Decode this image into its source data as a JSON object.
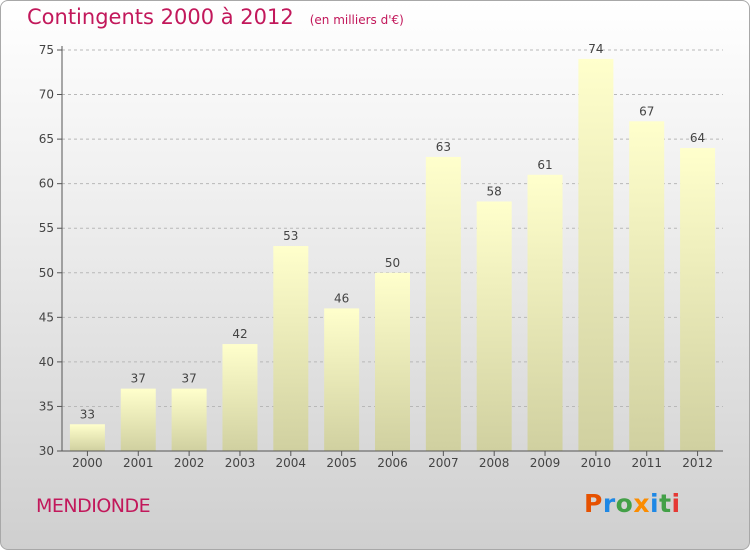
{
  "title": "Contingents 2000 à 2012",
  "subtitle": "(en milliers d'€)",
  "commune": "MENDIONDE",
  "brand": {
    "letters": [
      "P",
      "r",
      "o",
      "x",
      "i",
      "t",
      "i"
    ],
    "colors": [
      "#e65100",
      "#1e88e5",
      "#43a047",
      "#fb8c00",
      "#1e88e5",
      "#43a047",
      "#e53935"
    ]
  },
  "colors": {
    "accent": "#c2185b",
    "bar_top": "#ffffcc",
    "bar_bottom": "#d0d0a0",
    "grid": "#b8b8b8"
  },
  "chart_data": {
    "type": "bar",
    "title": "Contingents 2000 à 2012",
    "subtitle": "(en milliers d'€)",
    "categories": [
      "2000",
      "2001",
      "2002",
      "2003",
      "2004",
      "2005",
      "2006",
      "2007",
      "2008",
      "2009",
      "2010",
      "2011",
      "2012"
    ],
    "values": [
      33,
      37,
      37,
      42,
      53,
      46,
      50,
      63,
      58,
      61,
      74,
      67,
      64
    ],
    "ylim": [
      30,
      75
    ],
    "yticks": [
      30,
      35,
      40,
      45,
      50,
      55,
      60,
      65,
      70,
      75
    ],
    "grid": "horizontal dashed",
    "legend": "none",
    "data_labels": true
  }
}
